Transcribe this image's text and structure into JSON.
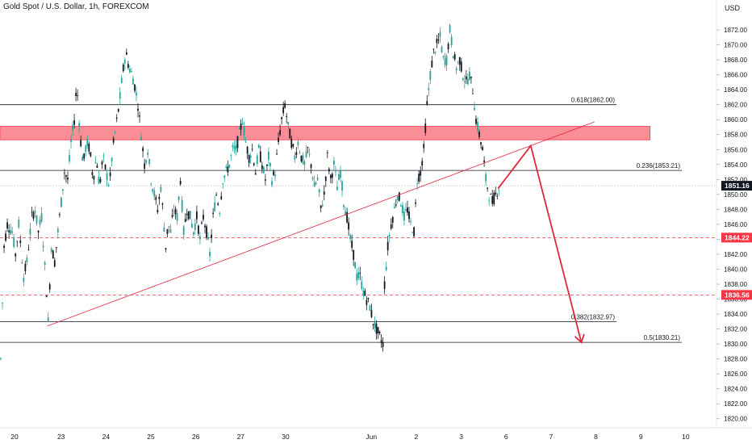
{
  "title": "Gold Spot / U.S. Dollar, 1h, FOREXCOM",
  "currency": "USD",
  "colors": {
    "up": "#26a69a",
    "down": "#131722",
    "candle_fill_up": "#ffffff",
    "zone": "#f7525f",
    "arrow": "#e0283c",
    "level_line": "#131722",
    "price_tag": "#f23645",
    "current_tag": "#131722",
    "dashed": "#f23645"
  },
  "chart_data": {
    "type": "candlestick",
    "y_axis": {
      "min": 1819,
      "max": 1876,
      "ticks": [
        1820,
        1822,
        1824,
        1826,
        1828,
        1830,
        1832,
        1834,
        1836,
        1838,
        1840,
        1842,
        1844,
        1846,
        1848,
        1850,
        1852,
        1854,
        1856,
        1858,
        1860,
        1862,
        1864,
        1866,
        1868,
        1870,
        1872
      ],
      "tick_labels": [
        "1820.00",
        "1822.00",
        "1824.00",
        "1826.00",
        "1828.00",
        "1830.00",
        "1832.00",
        "1834.00",
        "1836.00",
        "1838.00",
        "1840.00",
        "1842.00",
        "1844.00",
        "1846.00",
        "1848.00",
        "1850.00",
        "1852.00",
        "1854.00",
        "1856.00",
        "1858.00",
        "1860.00",
        "1862.00",
        "1864.00",
        "1866.00",
        "1868.00",
        "1870.00",
        "1872.00"
      ]
    },
    "x_axis": {
      "labels": [
        "20",
        "23",
        "24",
        "25",
        "26",
        "27",
        "30",
        "Jun",
        "2",
        "3",
        "6",
        "7",
        "8",
        "9",
        "10"
      ],
      "label_bars": [
        0,
        57,
        112,
        167,
        222,
        277,
        332,
        437,
        492,
        547,
        602,
        657,
        712,
        767,
        822
      ]
    },
    "price_path": [
      [
        0,
        1828
      ],
      [
        4,
        1843
      ],
      [
        8,
        1846
      ],
      [
        14,
        1845
      ],
      [
        18,
        1842
      ],
      [
        22,
        1846
      ],
      [
        28,
        1839
      ],
      [
        32,
        1841
      ],
      [
        38,
        1847
      ],
      [
        42,
        1848
      ],
      [
        46,
        1845
      ],
      [
        50,
        1847
      ],
      [
        56,
        1837
      ],
      [
        58,
        1833
      ],
      [
        62,
        1843
      ],
      [
        66,
        1841
      ],
      [
        70,
        1845
      ],
      [
        74,
        1849
      ],
      [
        78,
        1853
      ],
      [
        82,
        1852
      ],
      [
        86,
        1857
      ],
      [
        90,
        1860
      ],
      [
        93,
        1865
      ],
      [
        97,
        1858
      ],
      [
        101,
        1854
      ],
      [
        105,
        1857
      ],
      [
        109,
        1856
      ],
      [
        113,
        1852
      ],
      [
        117,
        1855
      ],
      [
        121,
        1851
      ],
      [
        125,
        1855
      ],
      [
        129,
        1853
      ],
      [
        133,
        1851
      ],
      [
        137,
        1856
      ],
      [
        141,
        1859
      ],
      [
        145,
        1862
      ],
      [
        149,
        1866
      ],
      [
        153,
        1869
      ],
      [
        157,
        1867
      ],
      [
        161,
        1866
      ],
      [
        165,
        1864
      ],
      [
        168,
        1862
      ],
      [
        172,
        1858
      ],
      [
        176,
        1854
      ],
      [
        180,
        1856
      ],
      [
        184,
        1852
      ],
      [
        188,
        1850
      ],
      [
        192,
        1848
      ],
      [
        196,
        1851
      ],
      [
        199,
        1847
      ],
      [
        202,
        1843
      ],
      [
        205,
        1846
      ],
      [
        208,
        1845
      ],
      [
        212,
        1848
      ],
      [
        216,
        1847
      ],
      [
        220,
        1852
      ],
      [
        224,
        1845
      ],
      [
        228,
        1848
      ],
      [
        232,
        1847
      ],
      [
        236,
        1845
      ],
      [
        240,
        1847
      ],
      [
        244,
        1844
      ],
      [
        248,
        1847
      ],
      [
        252,
        1845
      ],
      [
        256,
        1842
      ],
      [
        260,
        1847
      ],
      [
        264,
        1850
      ],
      [
        268,
        1848
      ],
      [
        272,
        1852
      ],
      [
        276,
        1853
      ],
      [
        280,
        1854
      ],
      [
        284,
        1856
      ],
      [
        288,
        1856
      ],
      [
        292,
        1858
      ],
      [
        296,
        1860
      ],
      [
        300,
        1857
      ],
      [
        304,
        1855
      ],
      [
        308,
        1856
      ],
      [
        312,
        1853
      ],
      [
        316,
        1856
      ],
      [
        320,
        1854
      ],
      [
        324,
        1852
      ],
      [
        328,
        1855
      ],
      [
        332,
        1852
      ],
      [
        336,
        1853
      ],
      [
        340,
        1857
      ],
      [
        344,
        1860
      ],
      [
        348,
        1862
      ],
      [
        352,
        1859
      ],
      [
        356,
        1857
      ],
      [
        360,
        1855
      ],
      [
        364,
        1857
      ],
      [
        368,
        1855
      ],
      [
        372,
        1854
      ],
      [
        376,
        1856
      ],
      [
        380,
        1854
      ],
      [
        384,
        1851
      ],
      [
        388,
        1852
      ],
      [
        392,
        1848
      ],
      [
        396,
        1850
      ],
      [
        400,
        1855
      ],
      [
        404,
        1852
      ],
      [
        408,
        1854
      ],
      [
        412,
        1851
      ],
      [
        416,
        1853
      ],
      [
        420,
        1849
      ],
      [
        424,
        1847
      ],
      [
        428,
        1844
      ],
      [
        432,
        1842
      ],
      [
        436,
        1839
      ],
      [
        440,
        1839
      ],
      [
        444,
        1837
      ],
      [
        448,
        1836
      ],
      [
        452,
        1835
      ],
      [
        456,
        1833
      ],
      [
        460,
        1832
      ],
      [
        464,
        1831
      ],
      [
        468,
        1830
      ],
      [
        470,
        1838
      ],
      [
        474,
        1843
      ],
      [
        478,
        1846
      ],
      [
        482,
        1848
      ],
      [
        486,
        1850
      ],
      [
        490,
        1849
      ],
      [
        494,
        1847
      ],
      [
        498,
        1848
      ],
      [
        502,
        1846
      ],
      [
        506,
        1845
      ],
      [
        510,
        1852
      ],
      [
        514,
        1853
      ],
      [
        518,
        1856
      ],
      [
        522,
        1862
      ],
      [
        526,
        1866
      ],
      [
        530,
        1869
      ],
      [
        534,
        1870
      ],
      [
        538,
        1871
      ],
      [
        542,
        1868
      ],
      [
        546,
        1868
      ],
      [
        550,
        1872
      ],
      [
        554,
        1869
      ],
      [
        558,
        1867
      ],
      [
        562,
        1868
      ],
      [
        566,
        1866
      ],
      [
        570,
        1865
      ],
      [
        574,
        1866
      ],
      [
        578,
        1864
      ],
      [
        582,
        1860
      ],
      [
        586,
        1858
      ],
      [
        590,
        1856
      ],
      [
        594,
        1852
      ],
      [
        598,
        1850
      ],
      [
        602,
        1849
      ],
      [
        606,
        1850
      ],
      [
        610,
        1851
      ]
    ],
    "levels": [
      {
        "name": "fib-0.618",
        "value": 1862.0,
        "label": "0.618(1862.00)",
        "from_bar": 0,
        "to_bar": 755
      },
      {
        "name": "fib-0.236",
        "value": 1853.21,
        "label": "0.236(1853.21)",
        "from_bar": 0,
        "to_bar": 835
      },
      {
        "name": "fib-0.382",
        "value": 1832.97,
        "label": "0.382(1832.97)",
        "from_bar": 0,
        "to_bar": 755
      },
      {
        "name": "fib-0.5",
        "value": 1830.21,
        "label": "0.5(1830.21)",
        "from_bar": 0,
        "to_bar": 835
      }
    ],
    "dashed_levels": [
      {
        "value": 1844.22,
        "label": "1844.22"
      },
      {
        "value": 1836.56,
        "label": "1836.56"
      }
    ],
    "current_price": {
      "value": 1851.16,
      "label": "1851.16"
    },
    "resistance_zone": {
      "low": 1857.3,
      "high": 1859.1,
      "from_bar": 0,
      "to_bar": 796
    },
    "trendline": {
      "from": [
        58,
        1832.4
      ],
      "to": [
        728,
        1859.7
      ]
    },
    "projection": [
      [
        610,
        1850.8
      ],
      [
        650,
        1856.5
      ],
      [
        712,
        1830.2
      ]
    ]
  }
}
